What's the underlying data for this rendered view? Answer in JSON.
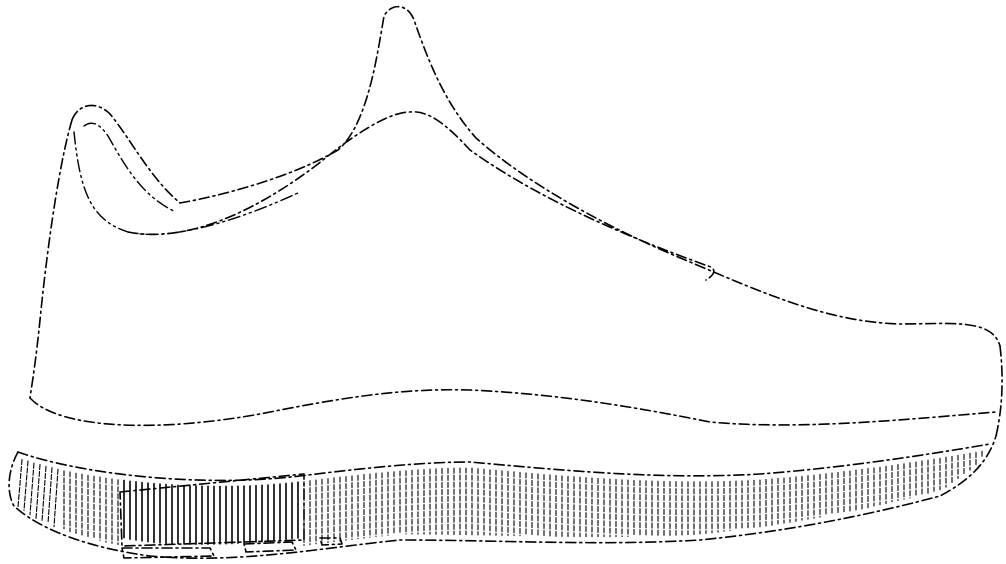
{
  "figure": {
    "subject": "shoe-side-view",
    "line_color": "#000000",
    "background_color": "#ffffff",
    "line_style": "dash-dot"
  }
}
